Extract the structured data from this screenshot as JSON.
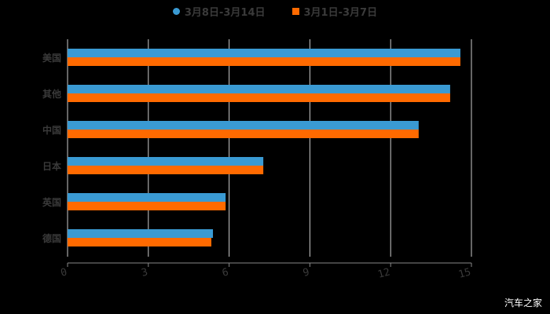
{
  "chart_data": {
    "type": "bar",
    "orientation": "horizontal",
    "title": "",
    "xlabel": "",
    "ylabel": "",
    "categories": [
      "美国",
      "其他",
      "中国",
      "日本",
      "英国",
      "德国"
    ],
    "series": [
      {
        "name": "3月8日-3月14日",
        "color": "#3a9ad3",
        "marker": "circle",
        "values": [
          14.59,
          14.21,
          13.04,
          7.27,
          5.87,
          5.4
        ]
      },
      {
        "name": "3月1日-3月7日",
        "color": "#ff6a00",
        "marker": "square",
        "values": [
          14.59,
          14.21,
          13.04,
          7.27,
          5.87,
          5.34
        ]
      }
    ],
    "xlim": [
      0,
      15
    ],
    "xticks": [
      0,
      3,
      6,
      9,
      12,
      15
    ],
    "grid": "vertical",
    "legend_position": "top"
  },
  "legend": {
    "items": [
      {
        "label": "3月8日-3月14日",
        "color": "#3a9ad3"
      },
      {
        "label": "3月1日-3月7日",
        "color": "#ff6a00"
      }
    ]
  },
  "watermark": "汽车之家",
  "colors": {
    "background": "#000000",
    "gridline": "#cccccc",
    "axis_text": "#3a3a3a",
    "series1": "#3a9ad3",
    "series2": "#ff6a00"
  }
}
